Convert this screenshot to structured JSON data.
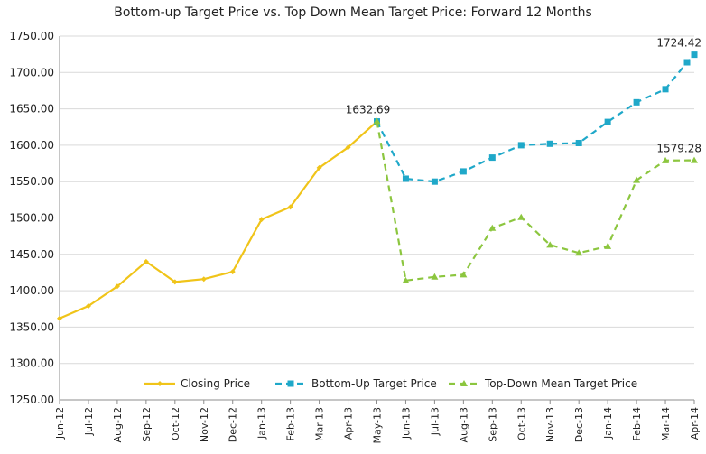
{
  "chart_data": {
    "type": "line",
    "title": "Bottom-up Target Price vs. Top Down Mean Target Price: Forward 12 Months",
    "xlabel": "",
    "ylabel": "",
    "ylim": [
      1250,
      1750
    ],
    "yticks": [
      "1250.00",
      "1300.00",
      "1350.00",
      "1400.00",
      "1450.00",
      "1500.00",
      "1550.00",
      "1600.00",
      "1650.00",
      "1700.00",
      "1750.00"
    ],
    "categories": [
      "Jun-12",
      "Jul-12",
      "Aug-12",
      "Sep-12",
      "Oct-12",
      "Nov-12",
      "Dec-12",
      "Jan-13",
      "Feb-13",
      "Mar-13",
      "Apr-13",
      "May-13",
      "Jun-13",
      "Jul-13",
      "Aug-13",
      "Sep-13",
      "Oct-13",
      "Nov-13",
      "Dec-13",
      "Jan-14",
      "Feb-14",
      "Mar-14",
      "Apr-14"
    ],
    "grid": "horizontal",
    "legend_position": "bottom",
    "series": [
      {
        "name": "Closing Price",
        "color": "#f0c419",
        "style": "solid",
        "marker": "diamond",
        "points": [
          {
            "x": "Jun-12",
            "y": 1362
          },
          {
            "x": "Jul-12",
            "y": 1379
          },
          {
            "x": "Aug-12",
            "y": 1406
          },
          {
            "x": "Sep-12",
            "y": 1440
          },
          {
            "x": "Oct-12",
            "y": 1412
          },
          {
            "x": "Nov-12",
            "y": 1416
          },
          {
            "x": "Dec-12",
            "y": 1426
          },
          {
            "x": "Jan-13",
            "y": 1498
          },
          {
            "x": "Feb-13",
            "y": 1515
          },
          {
            "x": "Mar-13",
            "y": 1569
          },
          {
            "x": "Apr-13",
            "y": 1597
          },
          {
            "x": "May-13",
            "y": 1632.69
          }
        ]
      },
      {
        "name": "Bottom-Up Target Price",
        "color": "#1fa8c9",
        "style": "dashed",
        "marker": "square",
        "points": [
          {
            "x": "May-13",
            "y": 1632.69
          },
          {
            "x": "Jun-13",
            "y": 1554
          },
          {
            "x": "Jul-13",
            "y": 1550
          },
          {
            "x": "Aug-13",
            "y": 1564
          },
          {
            "x": "Sep-13",
            "y": 1583
          },
          {
            "x": "Oct-13",
            "y": 1600
          },
          {
            "x": "Nov-13",
            "y": 1602
          },
          {
            "x": "Dec-13",
            "y": 1603
          },
          {
            "x": "Jan-14",
            "y": 1632
          },
          {
            "x": "Feb-14",
            "y": 1659
          },
          {
            "x": "Mar-14",
            "y": 1677
          },
          {
            "x": "Apr-14",
            "y": 1714
          },
          {
            "x": "Apr-14",
            "y": 1724.42
          }
        ]
      },
      {
        "name": "Top-Down Mean Target Price",
        "color": "#8cc63f",
        "style": "dashed",
        "marker": "triangle",
        "points": [
          {
            "x": "May-13",
            "y": 1632.69
          },
          {
            "x": "Jun-13",
            "y": 1414
          },
          {
            "x": "Jul-13",
            "y": 1419
          },
          {
            "x": "Aug-13",
            "y": 1422
          },
          {
            "x": "Sep-13",
            "y": 1486
          },
          {
            "x": "Oct-13",
            "y": 1501
          },
          {
            "x": "Nov-13",
            "y": 1463
          },
          {
            "x": "Dec-13",
            "y": 1452
          },
          {
            "x": "Jan-14",
            "y": 1461
          },
          {
            "x": "Feb-14",
            "y": 1552
          },
          {
            "x": "Mar-14",
            "y": 1579
          },
          {
            "x": "Apr-14",
            "y": 1579.28
          }
        ]
      }
    ],
    "annotations": [
      {
        "text": "1632.69",
        "x": "May-13",
        "y": 1632.69,
        "series": "Closing Price"
      },
      {
        "text": "1724.42",
        "x": "Apr-14",
        "y": 1724.42,
        "series": "Bottom-Up Target Price"
      },
      {
        "text": "1579.28",
        "x": "Apr-14",
        "y": 1579.28,
        "series": "Top-Down Mean Target Price"
      }
    ]
  }
}
